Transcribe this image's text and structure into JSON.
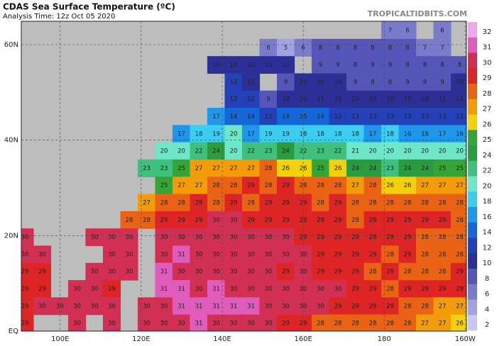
{
  "title": "CDAS Sea Surface Temperature (ºC)",
  "subtitle": "Analysis Time: 12z Oct 05 2020",
  "credit": "TROPICALTIDBITS.COM",
  "map": {
    "xlim": [
      90.4,
      200.3
    ],
    "ylim": [
      0,
      64.9
    ],
    "xticks": [
      {
        "value": 100,
        "label": "100E"
      },
      {
        "value": 120,
        "label": "120E"
      },
      {
        "value": 140,
        "label": "140E"
      },
      {
        "value": 160,
        "label": "160E"
      },
      180,
      {
        "value": 200,
        "label": "160W"
      }
    ],
    "yticks": [
      {
        "value": 60,
        "label": "60N"
      },
      {
        "value": 40,
        "label": "40N"
      },
      {
        "value": 20,
        "label": "20N"
      },
      {
        "value": 0,
        "label": "EQ"
      }
    ],
    "land_color": "#bdbdbd",
    "rows": [
      [
        null,
        null,
        null,
        null,
        null,
        null,
        null,
        null,
        null,
        null,
        null,
        null,
        null,
        null,
        null,
        null,
        null,
        null,
        null,
        null,
        null,
        7,
        6,
        null,
        6,
        null
      ],
      [
        null,
        null,
        null,
        null,
        null,
        null,
        null,
        null,
        null,
        null,
        null,
        null,
        null,
        null,
        6,
        5,
        6,
        8,
        8,
        8,
        8,
        8,
        8,
        7,
        7,
        null
      ],
      [
        null,
        null,
        null,
        null,
        null,
        null,
        null,
        null,
        null,
        null,
        null,
        10,
        10,
        10,
        10,
        10,
        null,
        9,
        9,
        8,
        9,
        9,
        8,
        8,
        8,
        8
      ],
      [
        null,
        null,
        null,
        null,
        null,
        null,
        null,
        null,
        null,
        null,
        null,
        null,
        12,
        11,
        null,
        9,
        10,
        10,
        10,
        9,
        8,
        8,
        9,
        9,
        9,
        10
      ],
      [
        null,
        null,
        null,
        null,
        null,
        null,
        null,
        null,
        null,
        null,
        null,
        null,
        12,
        12,
        9,
        10,
        10,
        11,
        10,
        10,
        10,
        10,
        10,
        10,
        11,
        11
      ],
      [
        null,
        null,
        null,
        null,
        null,
        null,
        null,
        null,
        null,
        null,
        null,
        17,
        14,
        14,
        13,
        14,
        15,
        14,
        12,
        13,
        13,
        13,
        13,
        13,
        13,
        12
      ],
      [
        null,
        null,
        null,
        null,
        null,
        null,
        null,
        null,
        null,
        17,
        18,
        19,
        20,
        17,
        19,
        19,
        18,
        18,
        18,
        18,
        17,
        18,
        16,
        16,
        17,
        16
      ],
      [
        null,
        null,
        null,
        null,
        null,
        null,
        null,
        null,
        20,
        20,
        22,
        24,
        20,
        22,
        23,
        24,
        22,
        23,
        22,
        21,
        20,
        20,
        20,
        20,
        20,
        20
      ],
      [
        null,
        null,
        null,
        null,
        null,
        null,
        null,
        23,
        23,
        25,
        27,
        27,
        27,
        27,
        28,
        26,
        26,
        25,
        26,
        24,
        24,
        23,
        24,
        24,
        25,
        25
      ],
      [
        null,
        null,
        null,
        null,
        null,
        null,
        null,
        null,
        25,
        27,
        27,
        28,
        28,
        29,
        28,
        29,
        28,
        28,
        28,
        27,
        28,
        26,
        26,
        27,
        27,
        27
      ],
      [
        null,
        null,
        null,
        null,
        null,
        null,
        null,
        27,
        28,
        28,
        29,
        28,
        29,
        28,
        29,
        29,
        29,
        28,
        29,
        28,
        28,
        28,
        28,
        28,
        28,
        28
      ],
      [
        null,
        null,
        null,
        null,
        null,
        null,
        28,
        28,
        29,
        29,
        29,
        30,
        30,
        29,
        29,
        29,
        29,
        29,
        29,
        28,
        29,
        29,
        29,
        29,
        29,
        28
      ],
      [
        30,
        null,
        null,
        null,
        30,
        30,
        30,
        null,
        30,
        30,
        30,
        30,
        30,
        30,
        30,
        30,
        29,
        29,
        29,
        29,
        29,
        29,
        29,
        28,
        28,
        28
      ],
      [
        30,
        30,
        null,
        null,
        null,
        30,
        30,
        null,
        30,
        31,
        30,
        30,
        30,
        30,
        30,
        30,
        30,
        29,
        29,
        29,
        29,
        28,
        29,
        28,
        28,
        28
      ],
      [
        29,
        29,
        null,
        null,
        30,
        30,
        30,
        null,
        31,
        30,
        30,
        30,
        30,
        30,
        30,
        29,
        30,
        29,
        29,
        29,
        28,
        29,
        28,
        28,
        28,
        29
      ],
      [
        29,
        29,
        null,
        30,
        30,
        29,
        null,
        null,
        31,
        31,
        30,
        31,
        30,
        30,
        30,
        30,
        30,
        30,
        30,
        29,
        29,
        28,
        29,
        29,
        29,
        29
      ],
      [
        29,
        30,
        30,
        30,
        30,
        30,
        null,
        30,
        30,
        31,
        31,
        31,
        31,
        31,
        30,
        30,
        30,
        30,
        29,
        29,
        29,
        29,
        28,
        28,
        27,
        27
      ],
      [
        29,
        null,
        null,
        30,
        null,
        30,
        null,
        30,
        30,
        30,
        31,
        30,
        30,
        30,
        30,
        29,
        29,
        28,
        28,
        28,
        28,
        28,
        28,
        27,
        27,
        26
      ]
    ]
  },
  "colorbar": {
    "levels": [
      32,
      31,
      30,
      29,
      28,
      27,
      26,
      25,
      24,
      22,
      20,
      18,
      16,
      14,
      12,
      10,
      8,
      6,
      4,
      2
    ],
    "colors": [
      "#f2a6ee",
      "#e05cbc",
      "#d22f55",
      "#de2525",
      "#ea6314",
      "#f39c0a",
      "#f3d20c",
      "#37a437",
      "#2a9c3f",
      "#3fc07c",
      "#6fe6c8",
      "#3ccdf0",
      "#1f96ea",
      "#1467d8",
      "#2340b8",
      "#2e2f96",
      "#5656b8",
      "#7b7bcc",
      "#a2a2e0",
      "#c8c8f2"
    ]
  }
}
